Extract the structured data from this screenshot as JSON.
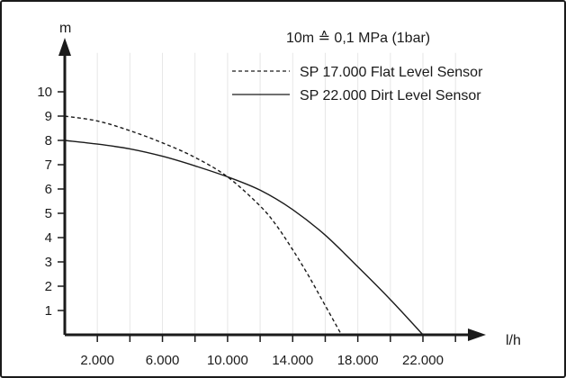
{
  "chart_data": {
    "type": "line",
    "note": "10m ≙ 0,1 MPa (1bar)",
    "ylabel": "m",
    "xlabel": "l/h",
    "ylim": [
      0,
      11.6
    ],
    "xlim": [
      0,
      24500
    ],
    "y_ticks": [
      "1",
      "2",
      "3",
      "4",
      "5",
      "6",
      "7",
      "8",
      "9",
      "10"
    ],
    "x_ticks": [
      "2.000",
      "6.000",
      "10.000",
      "14.000",
      "18.000",
      "22.000"
    ],
    "legend_position": "top-right",
    "series": [
      {
        "name": "SP 17.000 Flat Level Sensor",
        "style": "dashed",
        "x": [
          0,
          2000,
          4000,
          6000,
          8000,
          10000,
          12000,
          13000,
          14000,
          15000,
          16000,
          17000
        ],
        "y": [
          9.0,
          8.8,
          8.4,
          7.9,
          7.3,
          6.5,
          5.3,
          4.5,
          3.5,
          2.4,
          1.2,
          0
        ]
      },
      {
        "name": "SP 22.000 Dirt Level Sensor",
        "style": "solid",
        "x": [
          0,
          2000,
          4000,
          6000,
          8000,
          10000,
          12000,
          14000,
          16000,
          18000,
          20000,
          22000
        ],
        "y": [
          8.0,
          7.85,
          7.65,
          7.35,
          6.95,
          6.5,
          5.95,
          5.15,
          4.1,
          2.8,
          1.45,
          0
        ]
      }
    ]
  }
}
